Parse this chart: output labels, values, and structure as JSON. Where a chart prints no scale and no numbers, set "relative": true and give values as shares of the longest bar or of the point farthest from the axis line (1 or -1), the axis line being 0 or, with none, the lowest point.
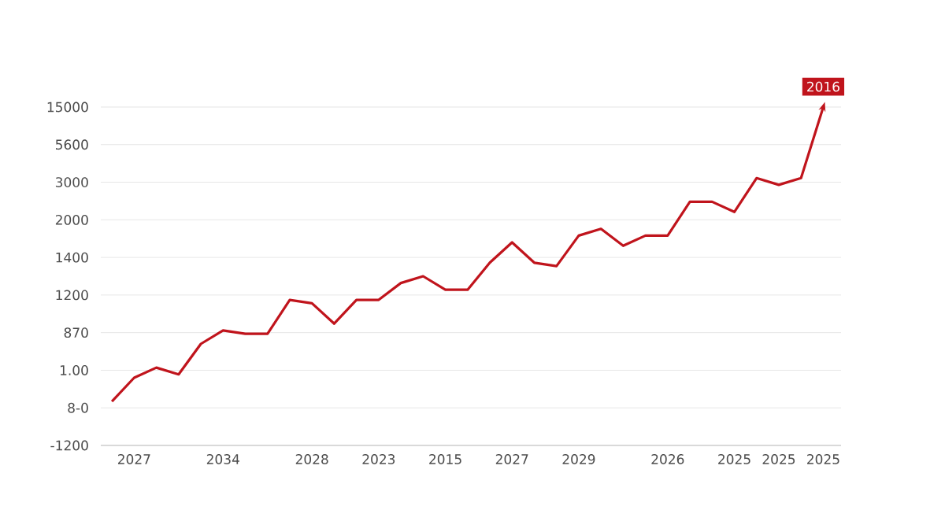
{
  "chart_data": {
    "type": "line",
    "relative": true,
    "categories": [
      null,
      "2027",
      null,
      null,
      null,
      "2034",
      null,
      null,
      null,
      "2028",
      null,
      null,
      "2023",
      null,
      null,
      "2015",
      null,
      null,
      "2027",
      null,
      null,
      "2029",
      null,
      null,
      null,
      "2026",
      null,
      null,
      "2025",
      null,
      "2025",
      null,
      "2025"
    ],
    "series": [
      {
        "color": "#c0141c",
        "values": [
          0.13,
          0.2,
          0.23,
          0.21,
          0.3,
          0.34,
          0.33,
          0.33,
          0.43,
          0.42,
          0.36,
          0.43,
          0.43,
          0.48,
          0.5,
          0.46,
          0.46,
          0.54,
          0.6,
          0.54,
          0.53,
          0.62,
          0.64,
          0.59,
          0.62,
          0.62,
          0.72,
          0.72,
          0.69,
          0.79,
          0.77,
          0.79,
          1.0
        ]
      }
    ],
    "annotations": [
      "2016",
      "15000",
      "5600",
      "3000",
      "2000",
      "1400",
      "1200",
      "870",
      "1.00",
      "8-0",
      "-1200"
    ],
    "grid": "y",
    "marker": "none",
    "line_style": "solid"
  }
}
